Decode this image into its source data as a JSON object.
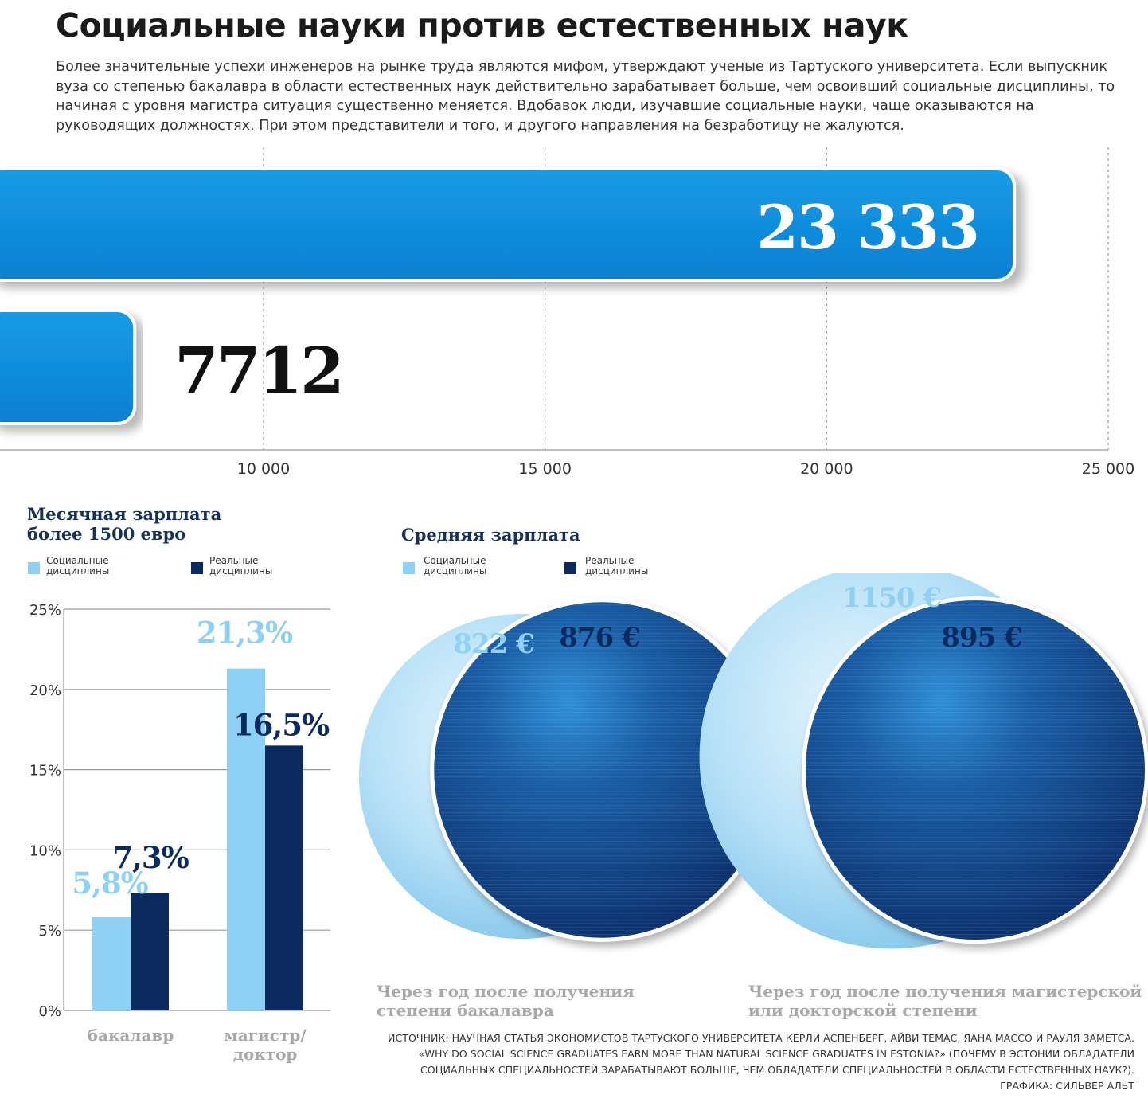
{
  "title": "Социальные науки против естественных наук",
  "intro": "Более значительные успехи инженеров на рынке труда являются мифом, утверждают ученые из Тартуского университета. Если выпускник вуза со степенью бакалавра в области естественных наук действительно зарабатывает больше, чем освоивший социальные дисциплины, то начиная с уровня магистра ситуация существенно меняется. Вдобавок люди, изучавшие социальные науки, чаще оказываются на руководящих должностях. При этом представители и того, и другого направления на безработицу не жалуются.",
  "colors": {
    "bright_blue": "#0a8ede",
    "light_blue": "#8fd1f4",
    "navy": "#0b2a5e",
    "grey_text": "#a8a8a8"
  },
  "chart_data": [
    {
      "type": "bar",
      "orientation": "horizontal",
      "values": [
        23333,
        7712
      ],
      "value_labels": [
        "23 333",
        "7712"
      ],
      "xlim": [
        5000,
        25000
      ],
      "ticks": [
        10000,
        15000,
        20000,
        25000
      ],
      "tick_labels": [
        "10 000",
        "15 000",
        "20 000",
        "25 000"
      ]
    },
    {
      "type": "bar",
      "title": "Месячная зарплата более 1500 евро",
      "categories": [
        "бакалавр",
        "магистр/ доктор"
      ],
      "series": [
        {
          "name": "Социальные дисциплины",
          "values": [
            5.8,
            21.3
          ],
          "labels": [
            "5,8%",
            "21,3%"
          ],
          "color": "#8fd1f4"
        },
        {
          "name": "Реальные дисциплины",
          "values": [
            7.3,
            16.5
          ],
          "labels": [
            "7,3%",
            "16,5%"
          ],
          "color": "#0b2a5e"
        }
      ],
      "ylim": [
        0,
        25
      ],
      "yticks": [
        0,
        5,
        10,
        15,
        20,
        25
      ],
      "ytick_labels": [
        "0%",
        "5%",
        "10%",
        "15%",
        "20%",
        "25%"
      ],
      "grid": true
    },
    {
      "type": "bubble",
      "title": "Средняя зарплата",
      "series_names": [
        "Социальные дисциплины",
        "Реальные дисциплины"
      ],
      "groups": [
        {
          "caption": "Через год после получения степени бакалавра",
          "social": 822,
          "social_label": "822 €",
          "real": 876,
          "real_label": "876 €"
        },
        {
          "caption": "Через год после получения магистерской или докторской степени",
          "social": 1150,
          "social_label": "1150 €",
          "real": 895,
          "real_label": "895 €"
        }
      ]
    }
  ],
  "source": "Источник: научная статья экономистов Тартуского университета Керли Аспенберг, Айви Темас, Яана Массо и Рауля Заметса. «Why do social science graduates earn more than natural science graduates in Estonia?» (Почему в Эстонии обладатели социальных специальностей зарабатывают больше, чем обладатели специальностей в области естественных наук?). Графика: Сильвер Альт"
}
